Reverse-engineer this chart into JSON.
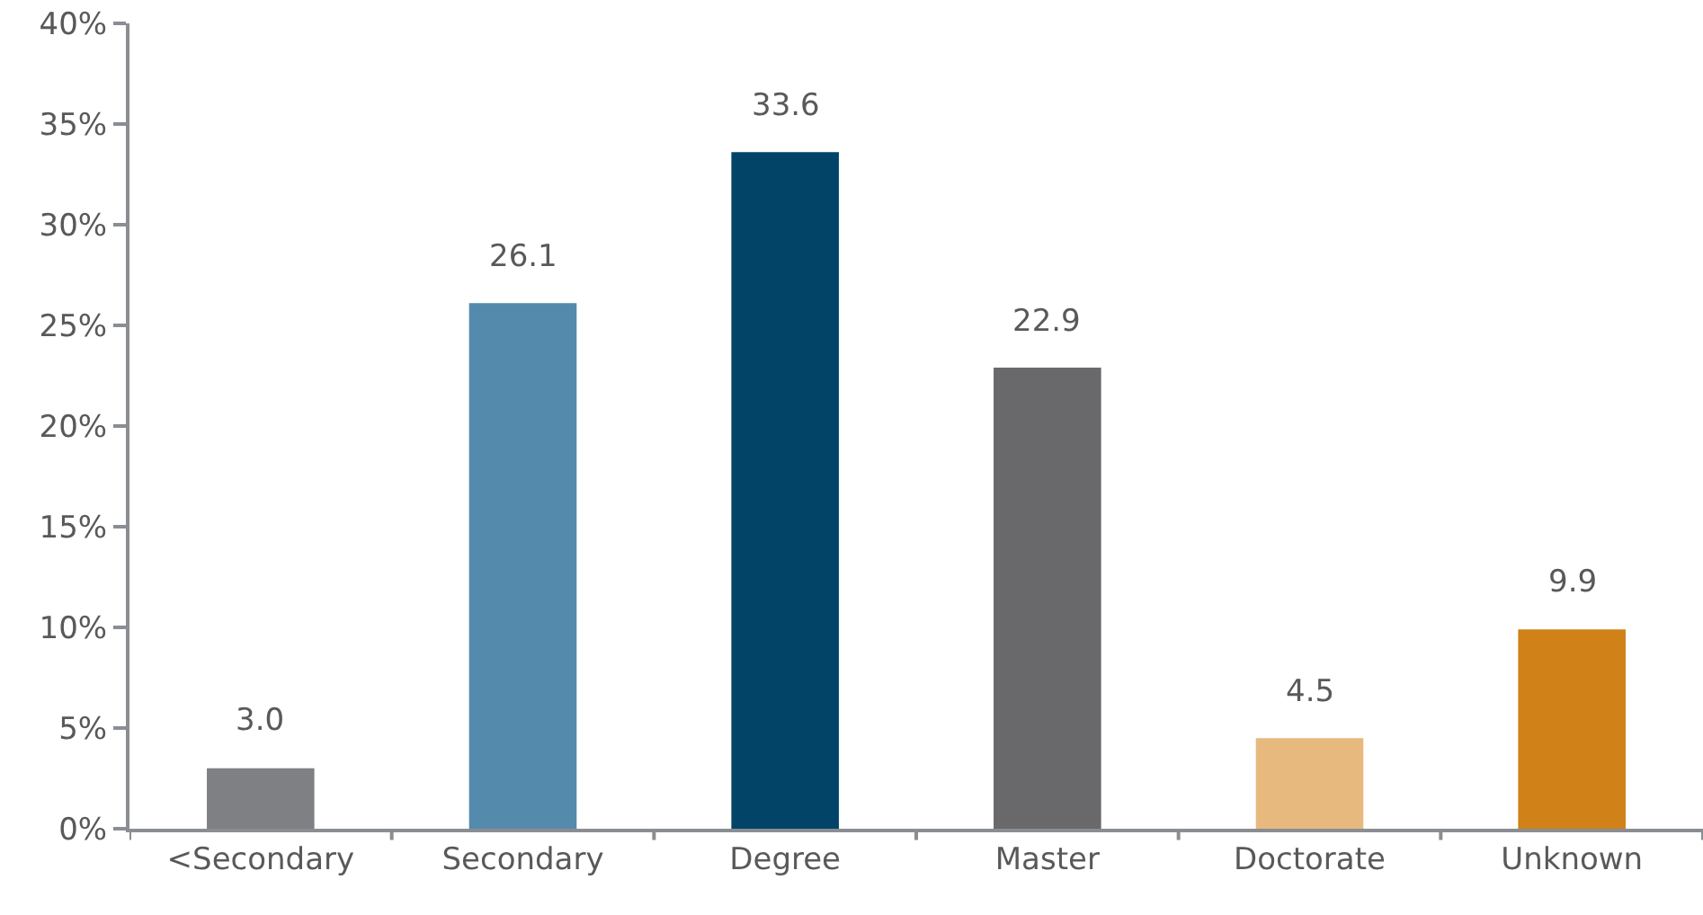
{
  "chart_data": {
    "type": "bar",
    "categories": [
      "<Secondary",
      "Secondary",
      "Degree",
      "Master",
      "Doctorate",
      "Unknown"
    ],
    "values": [
      3.0,
      26.1,
      33.6,
      22.9,
      4.5,
      9.9
    ],
    "colors": [
      "#7f8083",
      "#548aab",
      "#024467",
      "#69696b",
      "#e8b97f",
      "#d08117"
    ],
    "value_labels": [
      "3.0",
      "26.1",
      "33.6",
      "22.9",
      "4.5",
      "9.9"
    ],
    "ylim": [
      0,
      40
    ],
    "yticks": [
      {
        "value": 0,
        "label": "0%"
      },
      {
        "value": 5,
        "label": "5%"
      },
      {
        "value": 10,
        "label": "10%"
      },
      {
        "value": 15,
        "label": "15%"
      },
      {
        "value": 20,
        "label": "20%"
      },
      {
        "value": 25,
        "label": "25%"
      },
      {
        "value": 30,
        "label": "30%"
      },
      {
        "value": 35,
        "label": "35%"
      },
      {
        "value": 40,
        "label": "40%"
      }
    ],
    "grid": false
  }
}
